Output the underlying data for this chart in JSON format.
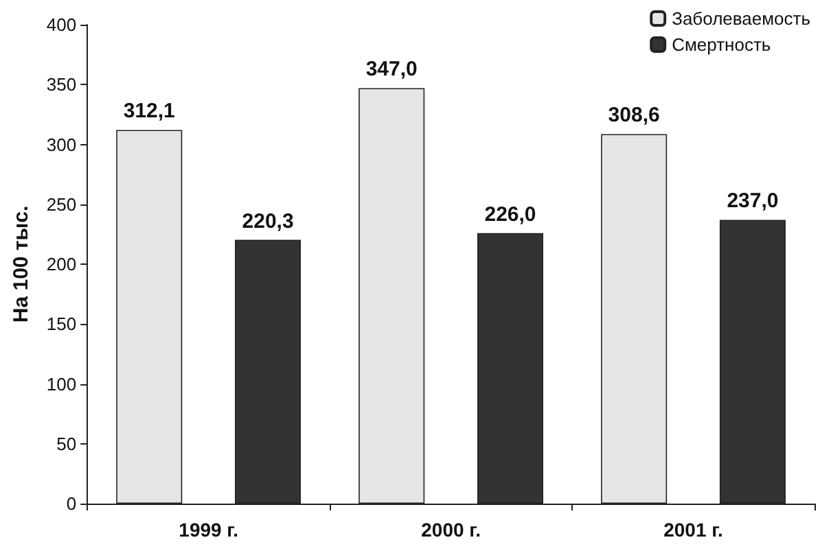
{
  "chart_data": {
    "type": "bar",
    "ylabel": "На 100 тыс.",
    "categories": [
      "1999 г.",
      "2000 г.",
      "2001 г."
    ],
    "series": [
      {
        "name": "Заболеваемость",
        "color": "#e6e6e6",
        "values": [
          312.1,
          347.0,
          308.6
        ],
        "value_labels": [
          "312,1",
          "347,0",
          "308,6"
        ]
      },
      {
        "name": "Смертность",
        "color": "#333333",
        "values": [
          220.3,
          226.0,
          237.0
        ],
        "value_labels": [
          "220,3",
          "226,0",
          "237,0"
        ]
      }
    ],
    "ylim": [
      0,
      400
    ],
    "yticks": [
      0,
      50,
      100,
      150,
      200,
      250,
      300,
      350,
      400
    ],
    "grid": false,
    "legend": "top right"
  }
}
